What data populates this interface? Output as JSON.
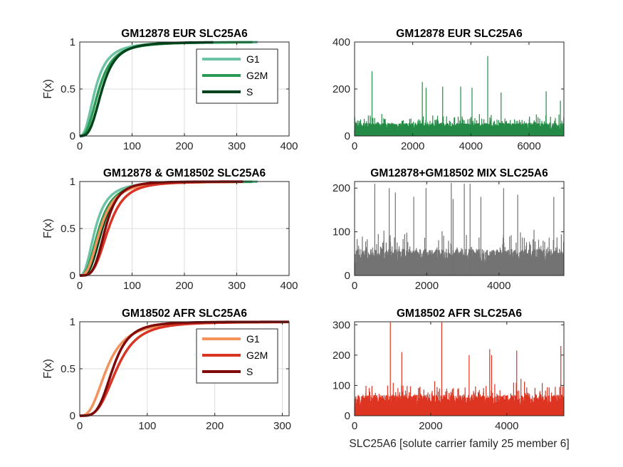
{
  "colors": {
    "axis": "#262626",
    "grid": "#dcdcdc",
    "eur_g1": "#6cc3a3",
    "eur_g2m": "#2a9a55",
    "eur_s": "#00441b",
    "afr_g1": "#f4925c",
    "afr_g2m": "#d93525",
    "afr_s": "#800a0a",
    "eur_hist": "#238b45",
    "mix_hist": "#737373",
    "afr_hist": "#de3523"
  },
  "chart_data": [
    {
      "id": "cdf_eur",
      "type": "line",
      "title": "GM12878 EUR SLC25A6",
      "xlabel": "",
      "ylabel": "F(x)",
      "xlim": [
        0,
        400
      ],
      "ylim": [
        0,
        1
      ],
      "xticks": [
        0,
        100,
        200,
        300,
        400
      ],
      "yticks": [
        0,
        0.5,
        1
      ],
      "grid": true,
      "legend": "top-right",
      "series": [
        {
          "name": "G1",
          "color_key": "eur_g1",
          "median": 30,
          "k": 2.5,
          "xmax": 340
        },
        {
          "name": "G2M",
          "color_key": "eur_g2m",
          "median": 37,
          "k": 2.7,
          "xmax": 330
        },
        {
          "name": "S",
          "color_key": "eur_s",
          "median": 43,
          "k": 3.2,
          "xmax": 255
        }
      ]
    },
    {
      "id": "hist_eur",
      "type": "bar",
      "title": "GM12878 EUR SLC25A6",
      "xlabel": "",
      "ylabel": "",
      "xlim": [
        0,
        7200
      ],
      "ylim": [
        0,
        400
      ],
      "xticks": [
        0,
        2000,
        4000,
        6000
      ],
      "yticks": [
        0,
        200,
        400
      ],
      "grid": false,
      "color_key": "eur_hist",
      "n": 7200,
      "base": 38,
      "seed": 11,
      "spikes": [
        [
          600,
          275
        ],
        [
          2330,
          230
        ],
        [
          2460,
          205
        ],
        [
          3030,
          210
        ],
        [
          3650,
          210
        ],
        [
          4040,
          205
        ],
        [
          4580,
          340
        ],
        [
          5040,
          185
        ],
        [
          6590,
          190
        ],
        [
          7080,
          150
        ]
      ]
    },
    {
      "id": "cdf_mix",
      "type": "line",
      "title": "GM12878 & GM18502 SLC25A6",
      "xlabel": "",
      "ylabel": "F(x)",
      "xlim": [
        0,
        400
      ],
      "ylim": [
        0,
        1
      ],
      "xticks": [
        0,
        100,
        200,
        300,
        400
      ],
      "yticks": [
        0,
        0.5,
        1
      ],
      "grid": true,
      "legend": "none",
      "series": [
        {
          "name": "",
          "color_key": "eur_g1",
          "median": 30,
          "k": 2.5,
          "xmax": 340
        },
        {
          "name": "",
          "color_key": "eur_g2m",
          "median": 37,
          "k": 2.7,
          "xmax": 330
        },
        {
          "name": "",
          "color_key": "eur_s",
          "median": 43,
          "k": 3.2,
          "xmax": 255
        },
        {
          "name": "",
          "color_key": "afr_g1",
          "median": 40,
          "k": 2.8,
          "xmax": 312
        },
        {
          "name": "",
          "color_key": "afr_g2m",
          "median": 55,
          "k": 3.5,
          "xmax": 312
        },
        {
          "name": "",
          "color_key": "afr_s",
          "median": 49,
          "k": 4.0,
          "xmax": 312
        }
      ]
    },
    {
      "id": "hist_mix",
      "type": "bar",
      "title": "GM12878+GM18502 MIX SLC25A6",
      "xlabel": "",
      "ylabel": "",
      "xlim": [
        0,
        5800
      ],
      "ylim": [
        0,
        215
      ],
      "xticks": [
        0,
        2000,
        4000
      ],
      "yticks": [
        0,
        100,
        200
      ],
      "grid": false,
      "color_key": "mix_hist",
      "n": 5800,
      "base": 42,
      "seed": 23,
      "spikes": [
        [
          560,
          210
        ],
        [
          960,
          200
        ],
        [
          1130,
          190
        ],
        [
          1640,
          180
        ],
        [
          1980,
          200
        ],
        [
          2680,
          212
        ],
        [
          2730,
          175
        ],
        [
          3040,
          210
        ],
        [
          3200,
          210
        ],
        [
          3500,
          180
        ],
        [
          4130,
          200
        ],
        [
          4520,
          185
        ],
        [
          5520,
          180
        ]
      ]
    },
    {
      "id": "cdf_afr",
      "type": "line",
      "title": "GM18502 AFR SLC25A6",
      "xlabel": "",
      "ylabel": "F(x)",
      "xlim": [
        0,
        310
      ],
      "ylim": [
        0,
        1
      ],
      "xticks": [
        0,
        100,
        200,
        300
      ],
      "yticks": [
        0,
        0.5,
        1
      ],
      "grid": true,
      "legend": "top-right",
      "series": [
        {
          "name": "G1",
          "color_key": "afr_g1",
          "median": 40,
          "k": 2.8,
          "xmax": 312
        },
        {
          "name": "G2M",
          "color_key": "afr_g2m",
          "median": 55,
          "k": 3.5,
          "xmax": 312
        },
        {
          "name": "S",
          "color_key": "afr_s",
          "median": 49,
          "k": 4.0,
          "xmax": 312
        }
      ]
    },
    {
      "id": "hist_afr",
      "type": "bar",
      "title": "GM18502 AFR SLC25A6",
      "xlabel": "SLC25A6 [solute carrier family 25 member 6]",
      "ylabel": "",
      "xlim": [
        0,
        5500
      ],
      "ylim": [
        0,
        310
      ],
      "xticks": [
        0,
        2000,
        4000
      ],
      "yticks": [
        0,
        100,
        200,
        300
      ],
      "grid": false,
      "color_key": "afr_hist",
      "n": 5500,
      "base": 48,
      "seed": 37,
      "spikes": [
        [
          940,
          308
        ],
        [
          1240,
          210
        ],
        [
          2290,
          308
        ],
        [
          3010,
          200
        ],
        [
          3550,
          220
        ],
        [
          3600,
          200
        ],
        [
          4260,
          215
        ],
        [
          5420,
          230
        ]
      ]
    }
  ]
}
